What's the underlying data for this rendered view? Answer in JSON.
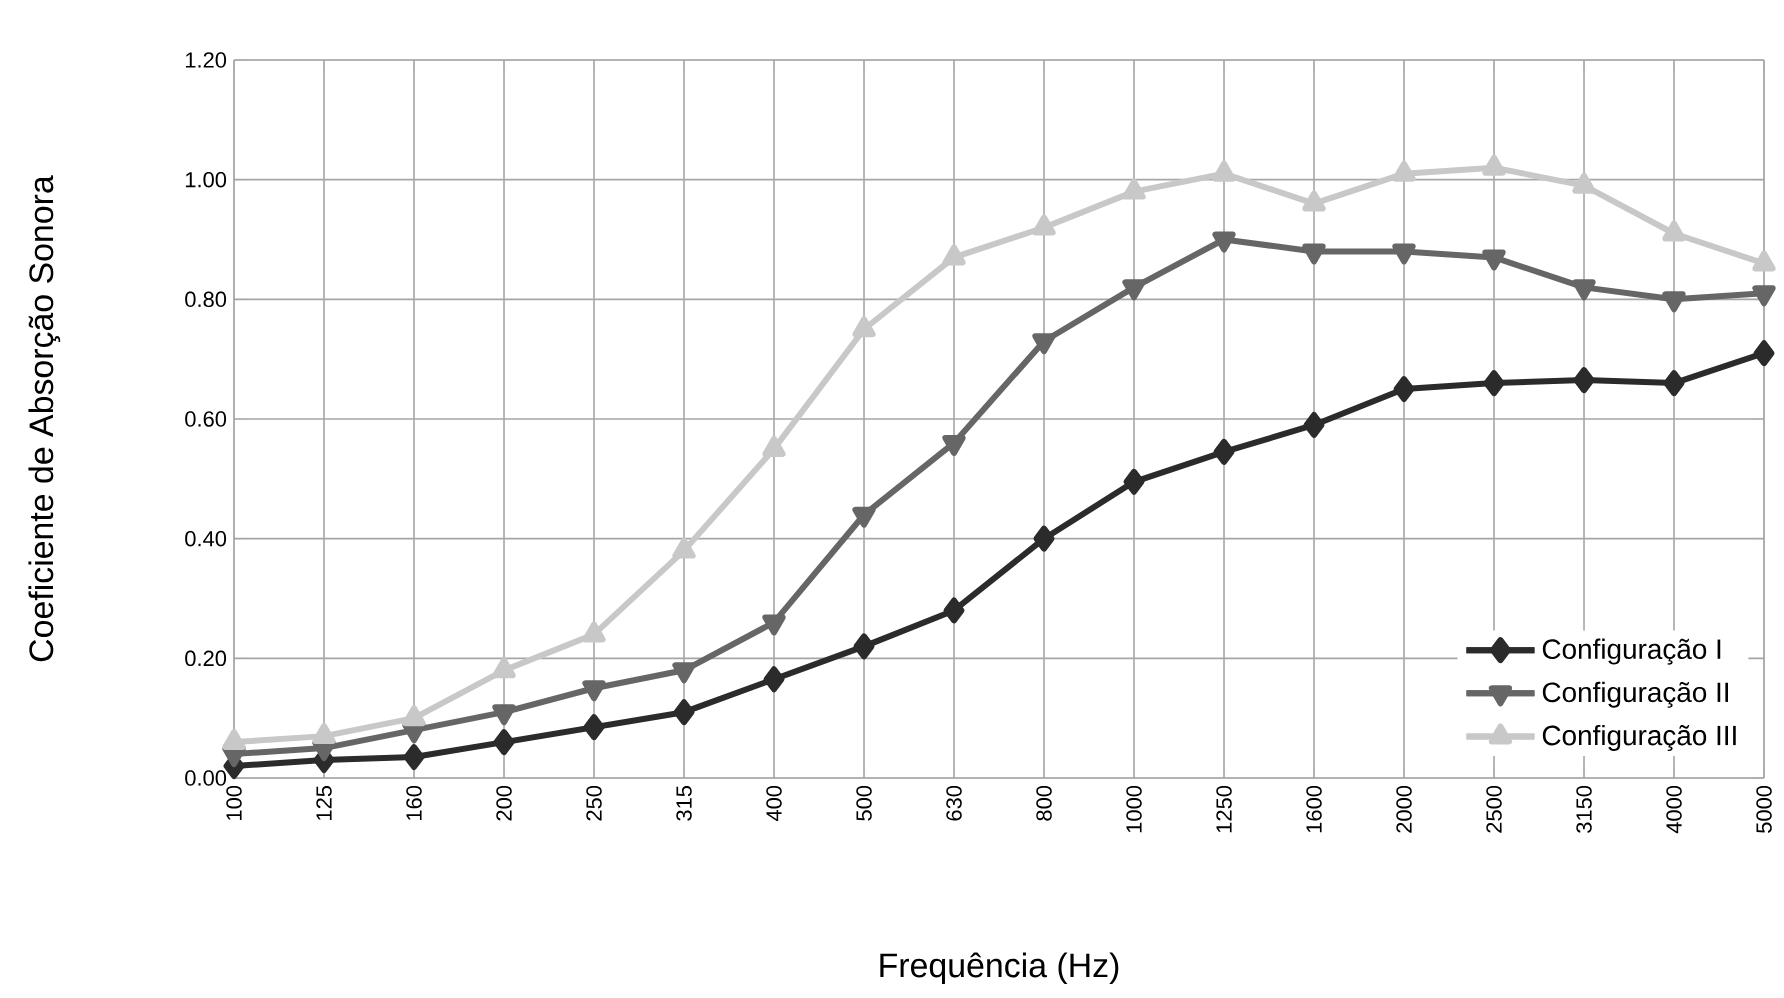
{
  "chart_data": {
    "type": "line",
    "xlabel": "Frequência (Hz)",
    "ylabel": "Coeficiente de Absorção Sonora",
    "categories": [
      "100",
      "125",
      "160",
      "200",
      "250",
      "315",
      "400",
      "500",
      "630",
      "800",
      "1000",
      "1250",
      "1600",
      "2000",
      "2500",
      "3150",
      "4000",
      "5000"
    ],
    "series": [
      {
        "name": "Configuração I",
        "color": "#2b2b2b",
        "marker": "diamond",
        "values": [
          0.02,
          0.03,
          0.035,
          0.06,
          0.085,
          0.11,
          0.165,
          0.22,
          0.28,
          0.4,
          0.495,
          0.545,
          0.59,
          0.65,
          0.66,
          0.665,
          0.66,
          0.71
        ]
      },
      {
        "name": "Configuração II",
        "color": "#666666",
        "marker": "triangle-down",
        "values": [
          0.04,
          0.05,
          0.08,
          0.11,
          0.15,
          0.18,
          0.26,
          0.44,
          0.56,
          0.73,
          0.82,
          0.9,
          0.88,
          0.88,
          0.87,
          0.82,
          0.8,
          0.81
        ]
      },
      {
        "name": "Configuração III",
        "color": "#c8c8c8",
        "marker": "triangle",
        "values": [
          0.06,
          0.07,
          0.1,
          0.18,
          0.24,
          0.38,
          0.55,
          0.75,
          0.87,
          0.92,
          0.98,
          1.01,
          0.96,
          1.01,
          1.02,
          0.99,
          0.91,
          0.86
        ]
      }
    ],
    "ylim": [
      0,
      1.2
    ],
    "yticks": [
      {
        "value": 0,
        "label": "0.00"
      },
      {
        "value": 0.2,
        "label": "0.20"
      },
      {
        "value": 0.4,
        "label": "0.40"
      },
      {
        "value": 0.6,
        "label": "0.60"
      },
      {
        "value": 0.8,
        "label": "0.80"
      },
      {
        "value": 1.0,
        "label": "1.00"
      },
      {
        "value": 1.2,
        "label": "1.20"
      }
    ],
    "grid": true,
    "legend": "bottom right",
    "line_style": "solid"
  }
}
